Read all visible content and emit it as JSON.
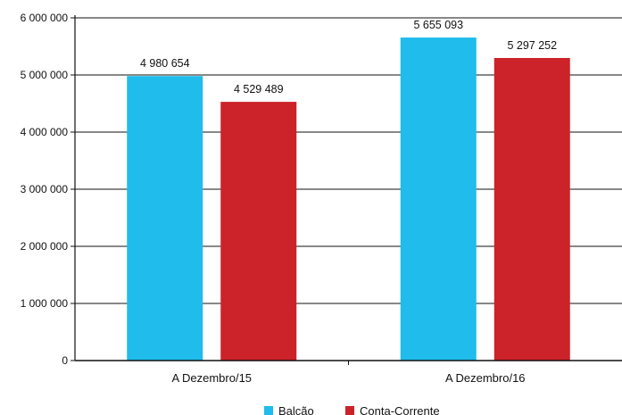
{
  "chart_data": {
    "type": "bar",
    "categories": [
      "A Dezembro/15",
      "A Dezembro/16"
    ],
    "series": [
      {
        "name": "Balcão",
        "values": [
          4980654,
          5655093
        ],
        "labels": [
          "4 980 654",
          "5 655 093"
        ],
        "color": "#1FBCEC"
      },
      {
        "name": "Conta-Corrente",
        "values": [
          4529489,
          5297252
        ],
        "labels": [
          "4 529 489",
          "5 297 252"
        ],
        "color": "#CC2229"
      }
    ],
    "ylim": [
      0,
      6000000
    ],
    "yticks": [
      0,
      1000000,
      2000000,
      3000000,
      4000000,
      5000000,
      6000000
    ],
    "ytick_labels": [
      "0",
      "1 000 000",
      "2 000 000",
      "3 000 000",
      "4 000 000",
      "5 000 000",
      "6 000 000"
    ],
    "grid": true,
    "legend_position": "bottom"
  }
}
